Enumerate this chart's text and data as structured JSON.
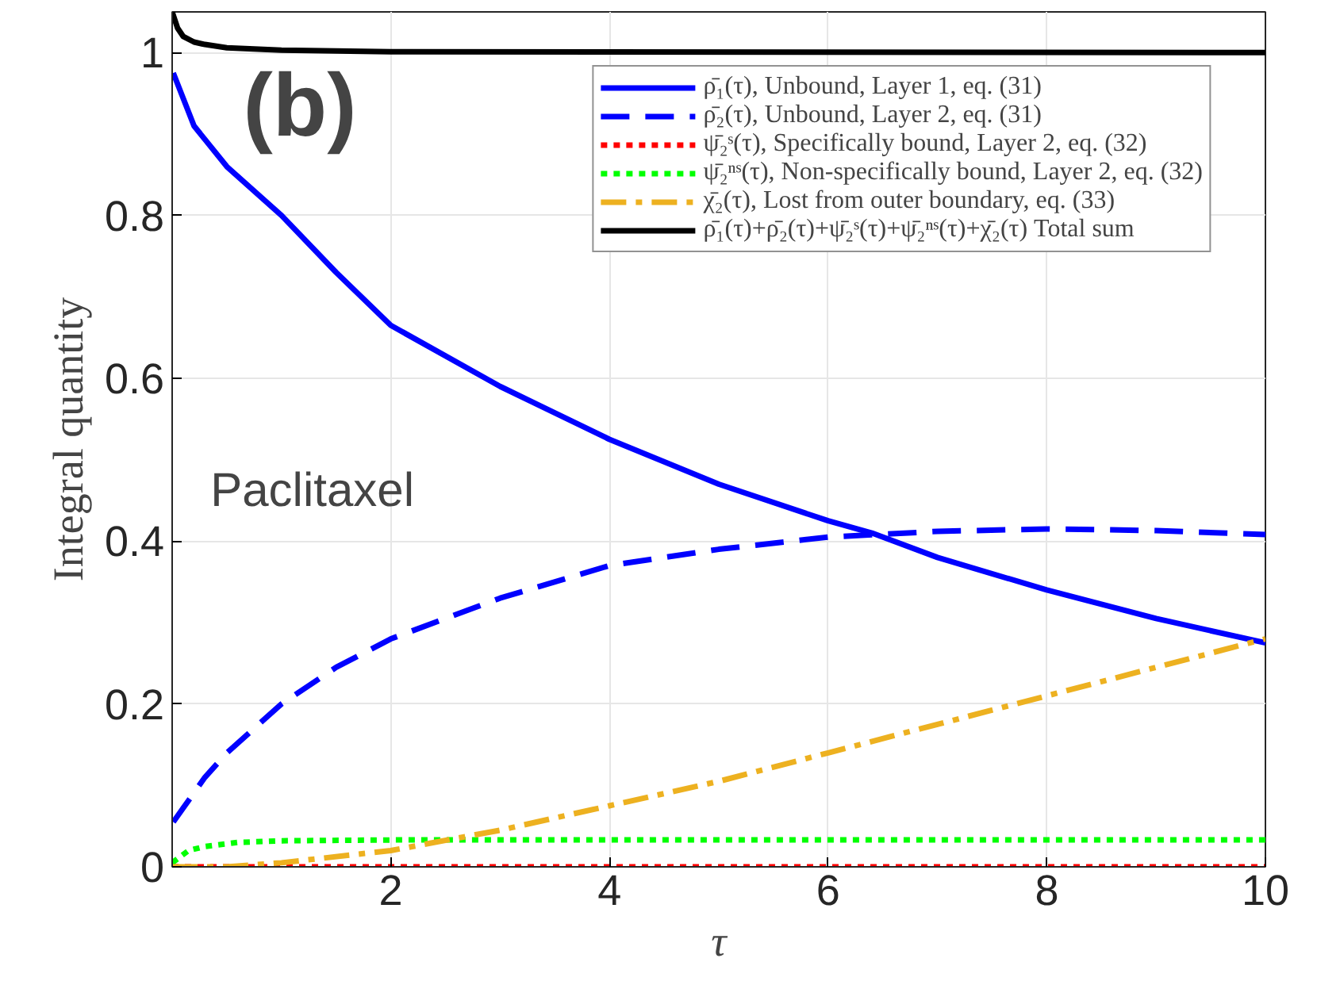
{
  "chart_data": {
    "type": "line",
    "xlabel": "τ",
    "ylabel": "Integral quantity",
    "annotations": [
      "(b)",
      "Paclitaxel"
    ],
    "xlim": [
      0,
      10
    ],
    "ylim": [
      0,
      1.05
    ],
    "xticks": [
      2,
      4,
      6,
      8,
      10
    ],
    "yticks": [
      0,
      0.2,
      0.4,
      0.6,
      0.8,
      1
    ],
    "grid": true,
    "legend": "top right",
    "series": [
      {
        "name": "ρ̄₁(τ), Unbound, Layer 1, eq. (31)",
        "color": "#0000ff",
        "line_style": "solid",
        "x": [
          0.01,
          0.2,
          0.5,
          1,
          1.5,
          2,
          3,
          4,
          5,
          6,
          6.4,
          7,
          8,
          9,
          10
        ],
        "values": [
          0.975,
          0.91,
          0.86,
          0.8,
          0.73,
          0.665,
          0.59,
          0.525,
          0.47,
          0.425,
          0.41,
          0.38,
          0.34,
          0.305,
          0.275
        ]
      },
      {
        "name": "ρ̄₂(τ), Unbound, Layer 2, eq. (31)",
        "color": "#0000ff",
        "line_style": "dashed",
        "x": [
          0.01,
          0.3,
          0.5,
          1,
          1.5,
          2,
          3,
          4,
          5,
          6,
          7,
          8,
          9,
          10
        ],
        "values": [
          0.055,
          0.11,
          0.14,
          0.2,
          0.245,
          0.28,
          0.33,
          0.37,
          0.39,
          0.405,
          0.412,
          0.415,
          0.413,
          0.408
        ]
      },
      {
        "name": "ψ̄₂ˢ(τ), Specifically bound, Layer 2, eq. (32)",
        "color": "#ff0000",
        "line_style": "dotted",
        "x": [
          0,
          10
        ],
        "values": [
          0,
          0
        ]
      },
      {
        "name": "ψ̄₂ⁿˢ(τ), Non-specifically bound, Layer 2, eq. (32)",
        "color": "#00ff00",
        "line_style": "dotted",
        "x": [
          0,
          0.15,
          0.3,
          0.6,
          1,
          2,
          10
        ],
        "values": [
          0.005,
          0.02,
          0.025,
          0.03,
          0.032,
          0.033,
          0.033
        ]
      },
      {
        "name": "χ̄₂(τ), Lost from outer boundary, eq. (33)",
        "color": "#edb120",
        "line_style": "dashdot",
        "x": [
          0,
          0.5,
          1,
          2,
          3,
          4,
          5,
          6,
          7,
          8,
          9,
          10
        ],
        "values": [
          0,
          0,
          0.005,
          0.02,
          0.045,
          0.075,
          0.105,
          0.14,
          0.175,
          0.21,
          0.245,
          0.28
        ]
      },
      {
        "name": "ρ̄₁(τ)+ρ̄₂(τ)+ψ̄₂ˢ(τ)+ψ̄₂ⁿˢ(τ)+χ̄₂(τ) Total sum",
        "color": "#000000",
        "line_style": "solid",
        "x": [
          0,
          0.05,
          0.1,
          0.2,
          0.3,
          0.5,
          1,
          2,
          10
        ],
        "values": [
          1.05,
          1.03,
          1.02,
          1.013,
          1.01,
          1.006,
          1.003,
          1.001,
          1.0
        ]
      }
    ]
  }
}
